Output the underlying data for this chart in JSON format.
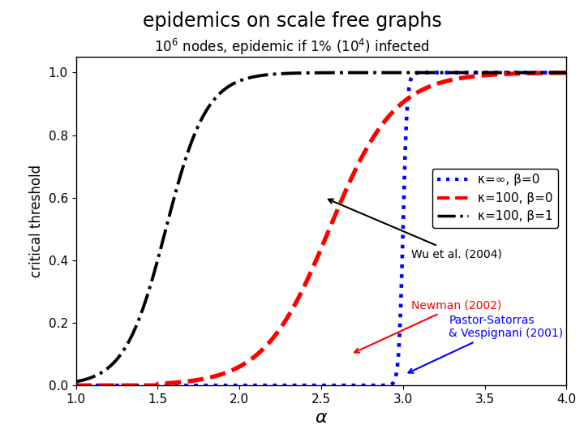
{
  "title": "epidemics on scale free graphs",
  "xlabel": "α",
  "ylabel": "critical threshold",
  "xlim": [
    1,
    4
  ],
  "ylim": [
    0,
    1.05
  ],
  "xticks": [
    1,
    1.5,
    2,
    2.5,
    3,
    3.5,
    4
  ],
  "yticks": [
    0,
    0.2,
    0.4,
    0.6,
    0.8,
    1
  ],
  "legend_labels": [
    "κ=∞, β=0",
    "κ=100, β=0",
    "κ=100, β=1"
  ]
}
